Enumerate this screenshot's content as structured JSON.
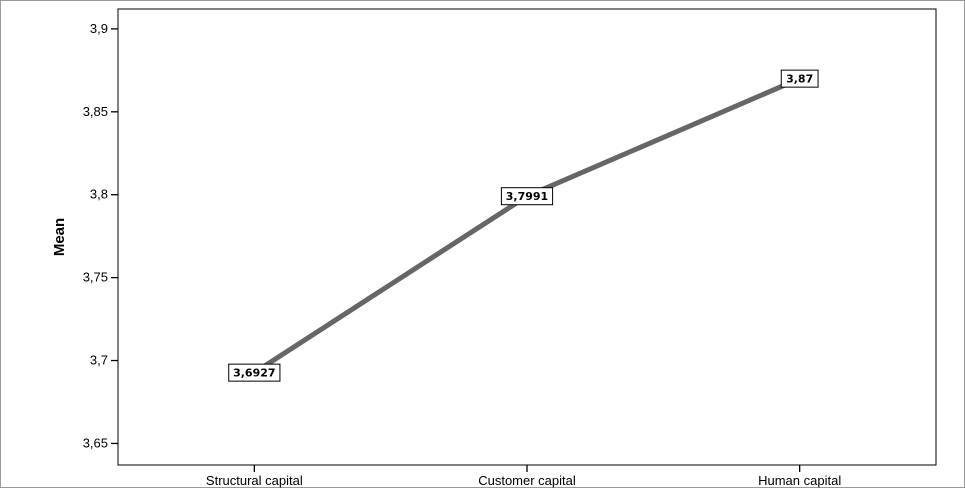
{
  "chart_data": {
    "type": "line",
    "categories": [
      "Structural capital",
      "Customer capital",
      "Human capital"
    ],
    "series": [
      {
        "values": [
          3.6927,
          3.7991,
          3.87
        ],
        "data_labels": [
          "3,6927",
          "3,7991",
          "3,87"
        ]
      }
    ],
    "title": "",
    "xlabel": "",
    "ylabel": "Mean",
    "ylim": [
      3.637,
      3.912
    ],
    "yticks": [
      3.65,
      3.7,
      3.75,
      3.8,
      3.85,
      3.9
    ],
    "ytick_labels": [
      "3,65",
      "3,7",
      "3,75",
      "3,8",
      "3,85",
      "3,9"
    ],
    "grid": false,
    "line_color": "#666666"
  }
}
